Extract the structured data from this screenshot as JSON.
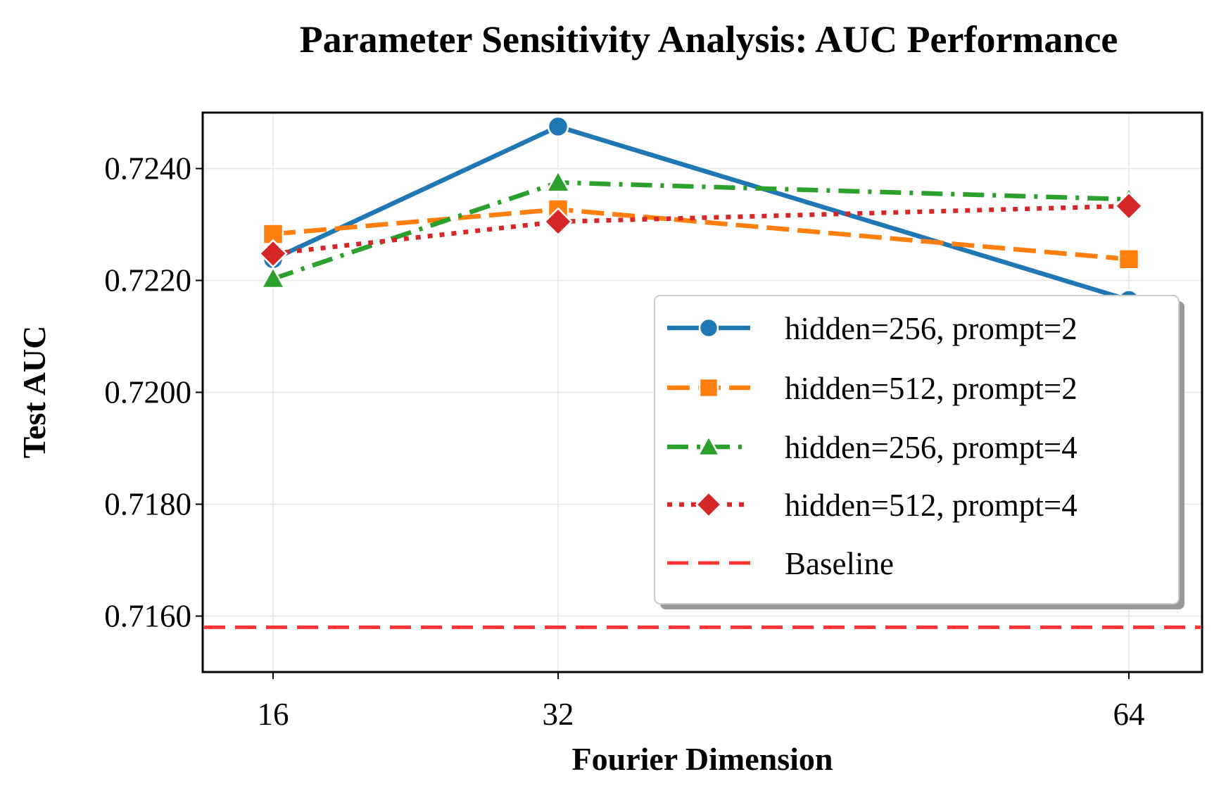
{
  "chart_data": {
    "type": "line",
    "title": "Parameter Sensitivity Analysis: AUC Performance",
    "xlabel": "Fourier Dimension",
    "ylabel": "Test AUC",
    "x": [
      16,
      32,
      64
    ],
    "x_tick_labels": [
      "16",
      "32",
      "64"
    ],
    "y_ticks": [
      0.716,
      0.718,
      0.72,
      0.722,
      0.724
    ],
    "y_tick_labels": [
      "0.7160",
      "0.7180",
      "0.7200",
      "0.7220",
      "0.7240"
    ],
    "ylim": [
      0.715,
      0.725
    ],
    "grid": true,
    "legend_position": "lower-right",
    "series": [
      {
        "name": "hidden=256, prompt=2",
        "values": [
          0.72238,
          0.72475,
          0.72165
        ],
        "color": "#1f77b4",
        "marker": "circle",
        "dash": "solid"
      },
      {
        "name": "hidden=512, prompt=2",
        "values": [
          0.72283,
          0.72327,
          0.72238
        ],
        "color": "#ff7f0e",
        "marker": "square",
        "dash": "dashed"
      },
      {
        "name": "hidden=256, prompt=4",
        "values": [
          0.72203,
          0.72375,
          0.72345
        ],
        "color": "#2ca02c",
        "marker": "triangle",
        "dash": "dashdot"
      },
      {
        "name": "hidden=512, prompt=4",
        "values": [
          0.72248,
          0.72305,
          0.72333
        ],
        "color": "#d62728",
        "marker": "diamond",
        "dash": "dotted"
      }
    ],
    "baseline": {
      "name": "Baseline",
      "value": 0.7158,
      "color": "#ff3333"
    }
  }
}
